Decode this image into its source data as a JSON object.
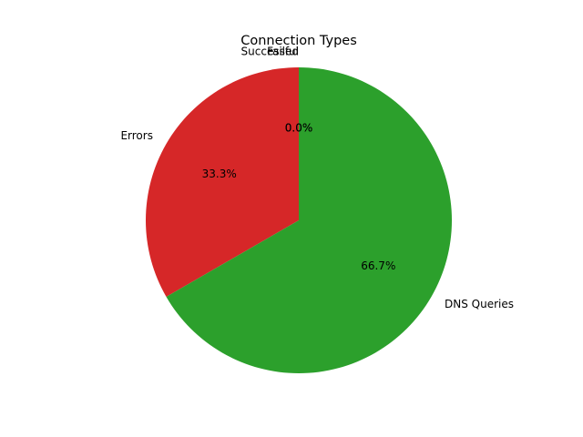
{
  "chart_data": {
    "type": "pie",
    "title": "Connection Types",
    "labels": [
      "Successful",
      "Failed",
      "Errors",
      "DNS Queries"
    ],
    "values": [
      0,
      0,
      1,
      2
    ],
    "percent_labels": [
      "0.0%",
      "0.0%",
      "33.3%",
      "66.7%"
    ],
    "colors": [
      "#1f77b4",
      "#ff7f0e",
      "#d62728",
      "#2ca02c"
    ],
    "start_angle_deg": 90,
    "direction": "counterclockwise",
    "legend": "none"
  }
}
